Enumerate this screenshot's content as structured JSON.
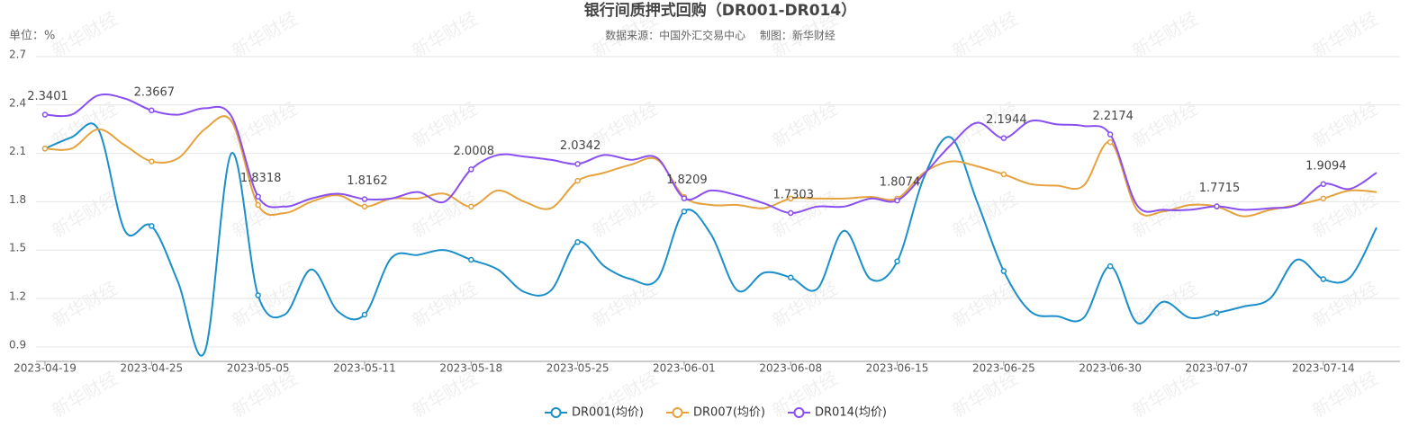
{
  "chart_data": {
    "type": "line",
    "title": "银行间质押式回购（DR001-DR014）",
    "subtitle": "数据来源：中国外汇交易中心　 制图：新华财经",
    "y_unit_label": "单位：%",
    "watermark": "新华财经",
    "categories": [
      "2023-04-19",
      null,
      null,
      null,
      "2023-04-25",
      null,
      null,
      null,
      "2023-05-05",
      null,
      null,
      null,
      "2023-05-11",
      null,
      null,
      null,
      "2023-05-18",
      null,
      null,
      null,
      "2023-05-25",
      null,
      null,
      null,
      "2023-06-01",
      null,
      null,
      null,
      "2023-06-08",
      null,
      null,
      null,
      "2023-06-15",
      null,
      null,
      null,
      "2023-06-25",
      null,
      null,
      null,
      "2023-06-30",
      null,
      null,
      null,
      "2023-07-07",
      null,
      null,
      null,
      "2023-07-14",
      null,
      null
    ],
    "series": [
      {
        "name": "DR001(均价)",
        "color": "#1a8fc9",
        "values": [
          2.13,
          2.2,
          2.25,
          1.62,
          1.65,
          1.3,
          0.87,
          2.1,
          1.22,
          1.1,
          1.38,
          1.12,
          1.1,
          1.45,
          1.47,
          1.5,
          1.44,
          1.38,
          1.24,
          1.25,
          1.55,
          1.4,
          1.32,
          1.32,
          1.74,
          1.6,
          1.25,
          1.36,
          1.33,
          1.26,
          1.62,
          1.32,
          1.43,
          1.95,
          2.2,
          1.8,
          1.37,
          1.12,
          1.09,
          1.08,
          1.4,
          1.05,
          1.18,
          1.08,
          1.11,
          1.15,
          1.2,
          1.44,
          1.32,
          1.33,
          1.64
        ]
      },
      {
        "name": "DR007(均价)",
        "color": "#e6a23c",
        "values": [
          2.13,
          2.13,
          2.25,
          2.15,
          2.05,
          2.07,
          2.25,
          2.3,
          1.78,
          1.73,
          1.8,
          1.84,
          1.77,
          1.82,
          1.82,
          1.85,
          1.77,
          1.87,
          1.8,
          1.76,
          1.93,
          1.98,
          2.03,
          2.06,
          1.83,
          1.78,
          1.78,
          1.76,
          1.82,
          1.82,
          1.82,
          1.83,
          1.82,
          1.98,
          2.05,
          2.02,
          1.97,
          1.91,
          1.9,
          1.9,
          2.17,
          1.75,
          1.74,
          1.78,
          1.77,
          1.71,
          1.75,
          1.78,
          1.82,
          1.87,
          1.86
        ]
      },
      {
        "name": "DR014(均价)",
        "color": "#8a4ff0",
        "values": [
          2.3401,
          2.34,
          2.46,
          2.44,
          2.3667,
          2.34,
          2.38,
          2.33,
          1.8318,
          1.77,
          1.82,
          1.85,
          1.8162,
          1.82,
          1.86,
          1.8,
          2.0008,
          2.09,
          2.08,
          2.06,
          2.0342,
          2.09,
          2.06,
          2.07,
          1.8209,
          1.87,
          1.84,
          1.79,
          1.7303,
          1.77,
          1.77,
          1.82,
          1.8074,
          1.97,
          2.15,
          2.29,
          2.1944,
          2.3,
          2.28,
          2.27,
          2.2174,
          1.78,
          1.75,
          1.75,
          1.7715,
          1.75,
          1.76,
          1.78,
          1.9094,
          1.88,
          1.98
        ]
      }
    ],
    "ylim": [
      0.81,
      2.7
    ],
    "yticks": [
      0.9,
      1.2,
      1.5,
      1.8,
      2.1,
      2.4,
      2.7
    ],
    "grid": true,
    "legend": "bottom"
  }
}
